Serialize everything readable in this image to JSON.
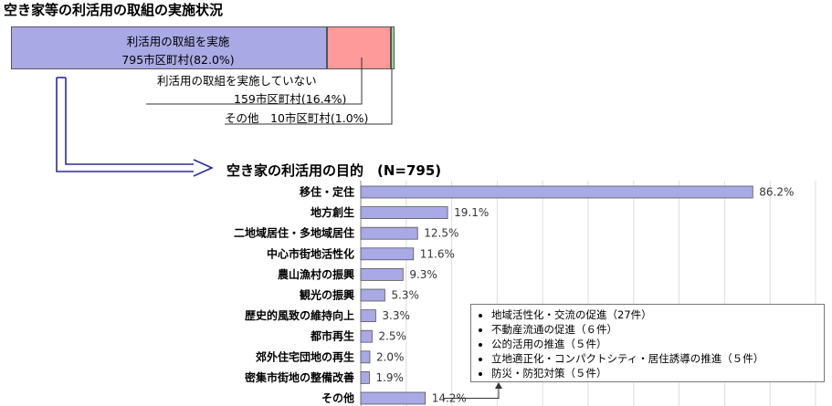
{
  "top_title": "空き家等の利活用の取組の実施状況",
  "stacked": {
    "segments": [
      {
        "name": "利活用の取組を実施",
        "detail": "795市区町村(82.0%)",
        "value": 82.0,
        "color": "#a9a9e6"
      },
      {
        "name": "利活用の取組を実施していない",
        "detail": "159市区町村(16.4%)",
        "value": 16.4,
        "color": "#ff9a9a"
      },
      {
        "name": "その他",
        "detail": "10市区町村(1.0%)",
        "value": 1.0,
        "color": "#8fdc8f"
      }
    ],
    "other_label": "その他　10市区町村(1.0%)"
  },
  "chart_data": {
    "type": "bar",
    "orientation": "horizontal",
    "title": "空き家の利活用の目的　(N=795)",
    "categories": [
      "移住・定住",
      "地方創生",
      "二地域居住・多地域居住",
      "中心市街地活性化",
      "農山漁村の振興",
      "観光の振興",
      "歴史的風致の維持向上",
      "都市再生",
      "郊外住宅団地の再生",
      "密集市街地の整備改善",
      "その他"
    ],
    "values": [
      86.2,
      19.1,
      12.5,
      11.6,
      9.3,
      5.3,
      3.3,
      2.5,
      2.0,
      1.9,
      14.2
    ],
    "value_labels": [
      "86.2%",
      "19.1%",
      "12.5%",
      "11.6%",
      "9.3%",
      "5.3%",
      "3.3%",
      "2.5%",
      "2.0%",
      "1.9%",
      "14.2%"
    ],
    "xlim": [
      0,
      100
    ],
    "grid": true,
    "bar_color": "#a9a9e6"
  },
  "other_breakdown": [
    "地域活性化・交流の促進（27件）",
    "不動産流通の促進（６件）",
    "公的活用の推進（５件）",
    "立地適正化・コンパクトシティ・居住誘導の推進（５件）",
    "防災・防犯対策（５件）"
  ]
}
